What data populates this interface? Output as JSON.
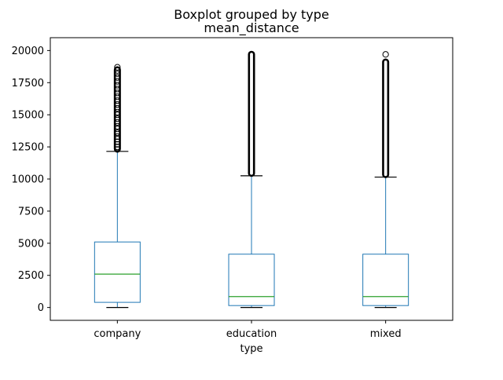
{
  "chart_data": {
    "type": "boxplot",
    "title": "Boxplot grouped by type",
    "subtitle": "mean_distance",
    "xlabel": "type",
    "ylabel": "",
    "ylim": [
      -1000,
      21000
    ],
    "yticks": [
      0,
      2500,
      5000,
      7500,
      10000,
      12500,
      15000,
      17500,
      20000
    ],
    "categories": [
      "company",
      "education",
      "mixed"
    ],
    "boxes": [
      {
        "category": "company",
        "whisker_low": 0,
        "q1": 400,
        "median": 2600,
        "q3": 5100,
        "whisker_high": 12150,
        "outlier_range": [
          12150,
          18700
        ],
        "outliers": [
          12300,
          12500,
          12700,
          12900,
          13100,
          13300,
          13600,
          13900,
          14100,
          14400,
          14700,
          15000,
          15200,
          15500,
          15800,
          16100,
          16400,
          16700,
          17000,
          17300,
          17600,
          17900,
          18200,
          18450,
          18700
        ]
      },
      {
        "category": "education",
        "whisker_low": 0,
        "q1": 150,
        "median": 850,
        "q3": 4150,
        "whisker_high": 10250,
        "outlier_range": [
          10250,
          19900
        ],
        "outliers": []
      },
      {
        "category": "mixed",
        "whisker_low": 0,
        "q1": 150,
        "median": 850,
        "q3": 4150,
        "whisker_high": 10150,
        "outlier_range": [
          10150,
          19300
        ],
        "outliers": [
          19700
        ]
      }
    ],
    "colors": {
      "box": "#1f77b4",
      "median": "#2ca02c",
      "cap": "#000000",
      "outlier": "#000000"
    }
  }
}
